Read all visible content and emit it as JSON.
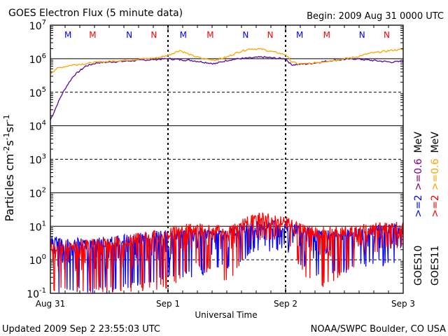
{
  "header": {
    "title": "GOES Electron Flux (5 minute data)",
    "begin": "Begin: 2009 Aug 31 0000 UTC"
  },
  "footer": {
    "updated": "Updated 2009 Sep  2 23:55:03 UTC",
    "credit": "NOAA/SWPC Boulder, CO USA"
  },
  "chart_data": {
    "type": "line",
    "title": "GOES Electron Flux (5 minute data)",
    "xlabel": "Universal Time",
    "ylabel_parts": [
      "Particles cm",
      "-2",
      "s",
      "-1",
      "sr",
      "-1"
    ],
    "ylim_log10": [
      -1,
      7
    ],
    "y_scale": "log",
    "y_ticks": [
      {
        "base": "10",
        "exp": "7"
      },
      {
        "base": "10",
        "exp": "6"
      },
      {
        "base": "10",
        "exp": "5"
      },
      {
        "base": "10",
        "exp": "4"
      },
      {
        "base": "10",
        "exp": "3"
      },
      {
        "base": "10",
        "exp": "2"
      },
      {
        "base": "10",
        "exp": "1"
      },
      {
        "base": "10",
        "exp": "0"
      },
      {
        "base": "10",
        "exp": "-1"
      }
    ],
    "x_ticks": [
      "Aug 31",
      "Sep 1",
      "Sep 2",
      "Sep 3"
    ],
    "x_days": [
      0,
      1,
      2,
      3
    ],
    "top_markers": [
      {
        "label": "M",
        "day": 0.15,
        "color": "#0000ff"
      },
      {
        "label": "M",
        "day": 0.36,
        "color": "#ff0000"
      },
      {
        "label": "N",
        "day": 0.67,
        "color": "#0000ff"
      },
      {
        "label": "N",
        "day": 0.88,
        "color": "#ff0000"
      },
      {
        "label": "M",
        "day": 1.13,
        "color": "#0000ff"
      },
      {
        "label": "M",
        "day": 1.36,
        "color": "#ff0000"
      },
      {
        "label": "N",
        "day": 1.66,
        "color": "#0000ff"
      },
      {
        "label": "N",
        "day": 1.87,
        "color": "#ff0000"
      },
      {
        "label": "M",
        "day": 2.12,
        "color": "#0000ff"
      },
      {
        "label": "M",
        "day": 2.35,
        "color": "#ff0000"
      },
      {
        "label": "N",
        "day": 2.65,
        "color": "#0000ff"
      },
      {
        "label": "N",
        "day": 2.86,
        "color": "#ff0000"
      }
    ],
    "legend": [
      {
        "name": "GOES10",
        "label": ">=2",
        "label_color": "#0000ff",
        "label2": ">=0.6",
        "label2_color": "#800080",
        "unit": "MeV"
      },
      {
        "name": "GOES11",
        "label": ">=2",
        "label_color": "#ff0000",
        "label2": ">=0.6",
        "label2_color": "#ffa500",
        "unit": "MeV"
      }
    ],
    "legend_placement": "right",
    "grid": true,
    "series": [
      {
        "label": "GOES10 >=0.6 MeV",
        "color": "#5a0aa0",
        "x": [
          0.0,
          0.03,
          0.06,
          0.1,
          0.15,
          0.2,
          0.3,
          0.4,
          0.5,
          0.6,
          0.7,
          0.8,
          0.9,
          1.0,
          1.1,
          1.2,
          1.3,
          1.4,
          1.5,
          1.6,
          1.7,
          1.8,
          1.9,
          2.0,
          2.05,
          2.1,
          2.2,
          2.3,
          2.4,
          2.5,
          2.6,
          2.7,
          2.8,
          2.9,
          3.0
        ],
        "y_log10": [
          4.18,
          4.4,
          4.65,
          4.95,
          5.25,
          5.5,
          5.78,
          5.88,
          5.9,
          5.92,
          5.94,
          5.96,
          5.98,
          6.0,
          5.97,
          5.95,
          5.9,
          5.85,
          5.95,
          6.0,
          6.02,
          6.05,
          6.02,
          6.0,
          5.82,
          5.83,
          5.85,
          5.9,
          5.95,
          5.98,
          6.0,
          5.96,
          5.93,
          5.9,
          5.92
        ]
      },
      {
        "label": "GOES11 >=0.6 MeV",
        "color": "#ffa500",
        "x": [
          0.0,
          0.05,
          0.1,
          0.2,
          0.3,
          0.4,
          0.5,
          0.6,
          0.7,
          0.8,
          0.9,
          1.0,
          1.1,
          1.2,
          1.3,
          1.4,
          1.5,
          1.6,
          1.7,
          1.8,
          1.9,
          2.0,
          2.05,
          2.1,
          2.2,
          2.3,
          2.4,
          2.5,
          2.6,
          2.7,
          2.8,
          2.9,
          3.0
        ],
        "y_log10": [
          5.55,
          5.7,
          5.75,
          5.82,
          5.85,
          5.9,
          5.92,
          5.95,
          5.97,
          6.0,
          6.02,
          6.1,
          6.25,
          6.1,
          6.0,
          5.96,
          6.05,
          6.2,
          6.3,
          6.28,
          6.2,
          6.12,
          5.92,
          5.85,
          5.85,
          5.9,
          5.95,
          6.0,
          6.05,
          6.15,
          6.2,
          6.25,
          6.28
        ]
      },
      {
        "label": "GOES10 >=2 MeV",
        "color": "#0000ff",
        "style": "noisy",
        "x": [
          0.0,
          0.25,
          0.5,
          0.75,
          1.0,
          1.25,
          1.5,
          1.75,
          2.0,
          2.25,
          2.5,
          2.75,
          3.0
        ],
        "y_log10_upper": [
          0.7,
          0.65,
          0.7,
          0.8,
          0.9,
          0.95,
          0.95,
          1.15,
          1.2,
          0.9,
          0.9,
          1.05,
          1.1
        ],
        "y_log10_lower": [
          -1.0,
          -1.0,
          -1.0,
          -0.8,
          -0.6,
          -0.5,
          -0.3,
          0.2,
          0.3,
          -0.6,
          -0.4,
          -0.2,
          -0.2
        ]
      },
      {
        "label": "GOES11 >=2 MeV",
        "color": "#ff0000",
        "style": "noisy",
        "x": [
          0.0,
          0.25,
          0.5,
          0.75,
          1.0,
          1.25,
          1.5,
          1.75,
          2.0,
          2.25,
          2.5,
          2.75,
          3.0
        ],
        "y_log10_upper": [
          0.6,
          0.6,
          0.7,
          0.8,
          0.95,
          1.2,
          1.0,
          1.45,
          1.3,
          1.0,
          1.0,
          1.1,
          1.15
        ],
        "y_log10_lower": [
          -1.0,
          -1.0,
          -1.0,
          -1.0,
          -0.9,
          -0.2,
          -0.8,
          0.6,
          0.5,
          -1.0,
          -0.5,
          0.2,
          0.3
        ]
      }
    ]
  }
}
